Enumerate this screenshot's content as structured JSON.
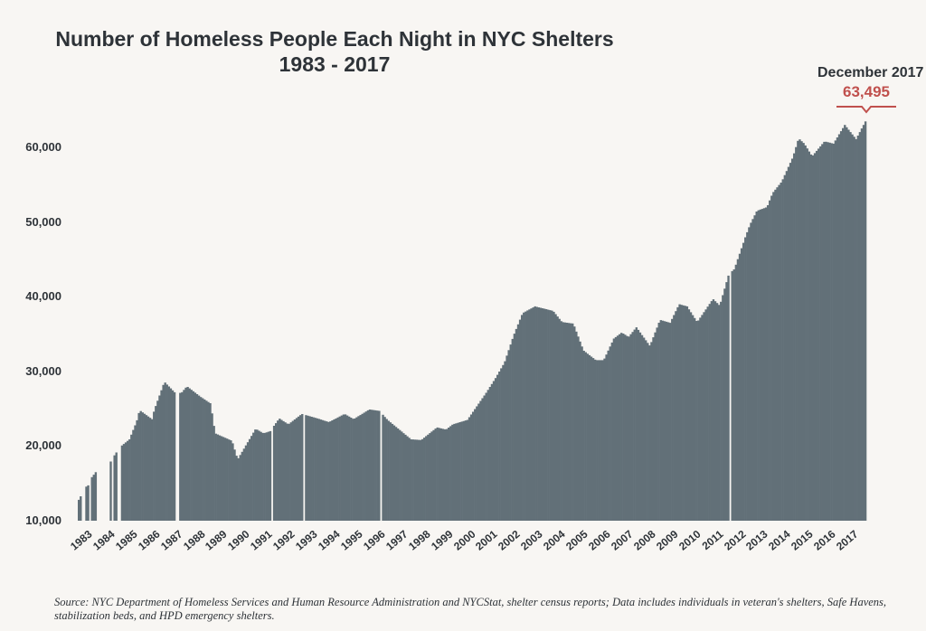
{
  "chart_data": {
    "type": "bar",
    "title": "Number of Homeless People Each Night in NYC Shelters",
    "subtitle": "1983 - 2017",
    "xlabel": "",
    "ylabel": "",
    "ylim": [
      10000,
      65000
    ],
    "yticks": [
      "10,000",
      "20,000",
      "30,000",
      "40,000",
      "50,000",
      "60,000"
    ],
    "ytick_values": [
      10000,
      20000,
      30000,
      40000,
      50000,
      60000
    ],
    "xticks": [
      "1983",
      "1984",
      "1985",
      "1986",
      "1987",
      "1988",
      "1989",
      "1990",
      "1991",
      "1992",
      "1993",
      "1994",
      "1995",
      "1996",
      "1997",
      "1998",
      "1999",
      "2000",
      "2001",
      "2002",
      "2003",
      "2004",
      "2005",
      "2006",
      "2007",
      "2008",
      "2009",
      "2010",
      "2011",
      "2012",
      "2013",
      "2014",
      "2015",
      "2016",
      "2017"
    ],
    "frequency": "monthly",
    "start_year": 1983,
    "months": 420,
    "anchors_year_value": [
      [
        1983.0,
        12800
      ],
      [
        1983.3,
        14500
      ],
      [
        1983.45,
        14800
      ],
      [
        1983.55,
        15700
      ],
      [
        1983.8,
        16700
      ],
      [
        1984.35,
        17600
      ],
      [
        1984.55,
        18600
      ],
      [
        1984.7,
        19300
      ],
      [
        1984.85,
        19900
      ],
      [
        1985.25,
        20900
      ],
      [
        1985.57,
        23300
      ],
      [
        1985.7,
        24800
      ],
      [
        1986.25,
        23600
      ],
      [
        1986.35,
        24800
      ],
      [
        1986.8,
        28600
      ],
      [
        1987.25,
        27200
      ],
      [
        1987.55,
        27100
      ],
      [
        1987.8,
        28000
      ],
      [
        1988.4,
        26600
      ],
      [
        1988.85,
        25700
      ],
      [
        1989.05,
        21700
      ],
      [
        1989.8,
        20700
      ],
      [
        1990.05,
        18200
      ],
      [
        1990.85,
        22300
      ],
      [
        1991.2,
        21700
      ],
      [
        1991.5,
        22000
      ],
      [
        1991.9,
        23700
      ],
      [
        1992.3,
        22900
      ],
      [
        1992.9,
        24300
      ],
      [
        1993.7,
        23600
      ],
      [
        1994.1,
        23200
      ],
      [
        1994.8,
        24300
      ],
      [
        1995.2,
        23600
      ],
      [
        1995.9,
        24900
      ],
      [
        1996.35,
        24700
      ],
      [
        1996.7,
        23500
      ],
      [
        1997.75,
        20900
      ],
      [
        1998.2,
        20800
      ],
      [
        1998.9,
        22500
      ],
      [
        1999.3,
        22200
      ],
      [
        1999.6,
        22900
      ],
      [
        2000.25,
        23500
      ],
      [
        2001.1,
        27200
      ],
      [
        2001.5,
        29100
      ],
      [
        2001.9,
        31200
      ],
      [
        2002.3,
        34800
      ],
      [
        2002.7,
        37800
      ],
      [
        2003.25,
        38700
      ],
      [
        2004.05,
        38100
      ],
      [
        2004.45,
        36600
      ],
      [
        2004.95,
        36400
      ],
      [
        2005.4,
        32800
      ],
      [
        2005.95,
        31500
      ],
      [
        2006.3,
        31500
      ],
      [
        2006.75,
        34400
      ],
      [
        2007.1,
        35200
      ],
      [
        2007.4,
        34600
      ],
      [
        2007.75,
        35900
      ],
      [
        2008.35,
        33400
      ],
      [
        2008.8,
        36900
      ],
      [
        2009.25,
        36500
      ],
      [
        2009.65,
        39000
      ],
      [
        2010.0,
        38700
      ],
      [
        2010.45,
        36600
      ],
      [
        2011.15,
        39700
      ],
      [
        2011.45,
        38800
      ],
      [
        2011.85,
        43000
      ],
      [
        2012.1,
        43700
      ],
      [
        2012.6,
        48100
      ],
      [
        2012.8,
        49700
      ],
      [
        2013.1,
        51500
      ],
      [
        2013.55,
        52000
      ],
      [
        2013.8,
        53900
      ],
      [
        2014.2,
        55400
      ],
      [
        2014.7,
        58700
      ],
      [
        2014.95,
        61200
      ],
      [
        2015.2,
        60500
      ],
      [
        2015.55,
        58800
      ],
      [
        2016.1,
        60800
      ],
      [
        2016.5,
        60500
      ],
      [
        2017.0,
        63000
      ],
      [
        2017.5,
        61100
      ],
      [
        2017.92,
        63495
      ]
    ],
    "missing_year_ranges": [
      [
        1983.15,
        1983.3
      ],
      [
        1983.45,
        1983.55
      ],
      [
        1983.8,
        1984.35
      ],
      [
        1984.45,
        1984.55
      ],
      [
        1984.7,
        1984.85
      ],
      [
        1987.27,
        1987.5
      ],
      [
        1991.52,
        1991.6
      ],
      [
        1993.0,
        1993.08
      ],
      [
        1996.36,
        1996.44
      ],
      [
        2011.9,
        2011.98
      ]
    ],
    "bar_color": "#627078",
    "annotation": {
      "label": "December 2017",
      "value": "63,495",
      "value_number": 63495,
      "color": "#c0504d"
    }
  },
  "source": "Source:  NYC Department of Homeless Services and Human Resource Administration and NYCStat, shelter census reports; Data includes individuals in veteran's shelters, Safe Havens, stabilization beds, and HPD emergency shelters."
}
